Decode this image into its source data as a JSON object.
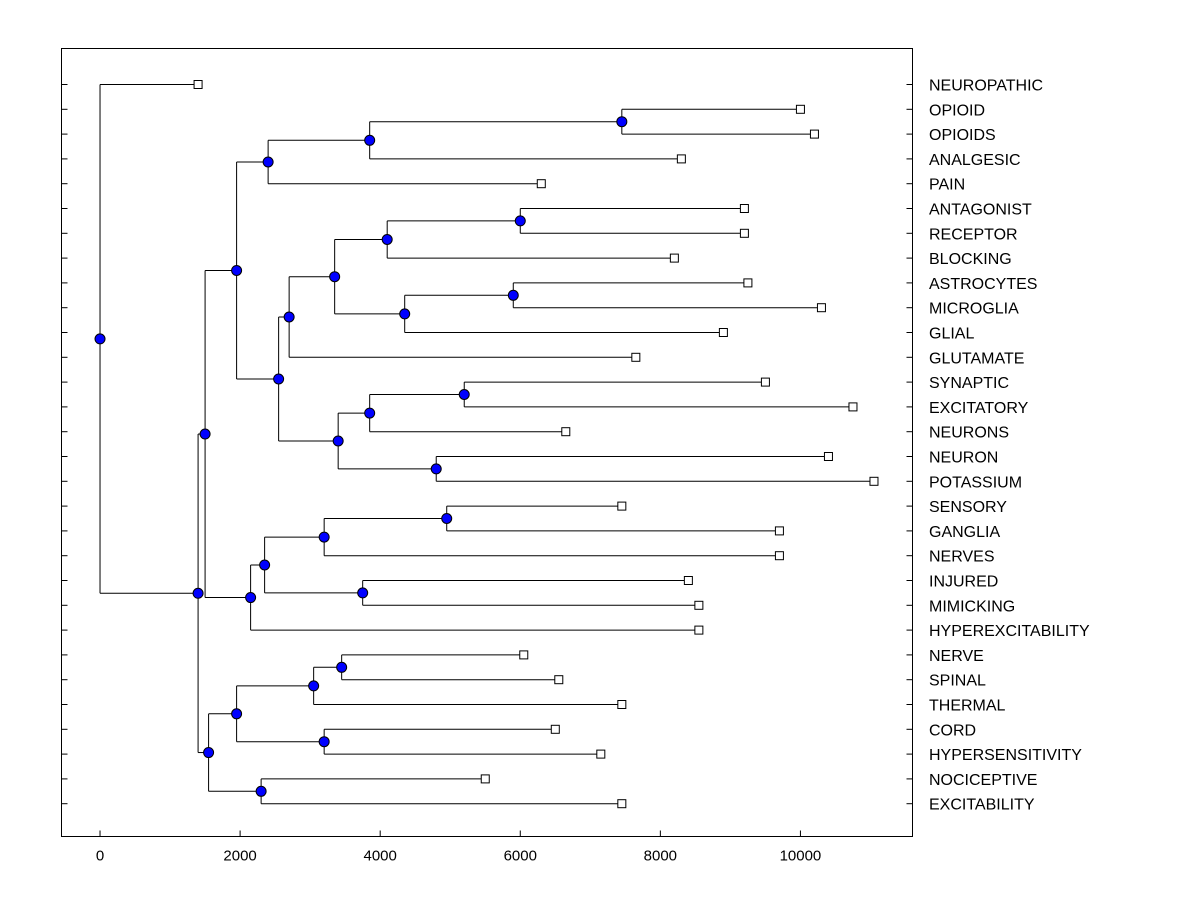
{
  "chart_data": {
    "type": "dendrogram",
    "title": "",
    "xlabel": "",
    "ylabel": "",
    "xlim": [
      -550,
      11600
    ],
    "xticks": [
      0,
      2000,
      4000,
      6000,
      8000,
      10000
    ],
    "xtick_labels": [
      "0",
      "2000",
      "4000",
      "6000",
      "8000",
      "10000"
    ],
    "colors": {
      "node": "#0000ff",
      "line": "#000000",
      "leaf_fill": "#ffffff"
    },
    "leaves": [
      {
        "id": "L0",
        "label": "NEUROPATHIC",
        "x": 1400
      },
      {
        "id": "L1",
        "label": "OPIOID",
        "x": 10000
      },
      {
        "id": "L2",
        "label": "OPIOIDS",
        "x": 10200
      },
      {
        "id": "L3",
        "label": "ANALGESIC",
        "x": 8300
      },
      {
        "id": "L4",
        "label": "PAIN",
        "x": 6300
      },
      {
        "id": "L5",
        "label": "ANTAGONIST",
        "x": 9200
      },
      {
        "id": "L6",
        "label": "RECEPTOR",
        "x": 9200
      },
      {
        "id": "L7",
        "label": "BLOCKING",
        "x": 8200
      },
      {
        "id": "L8",
        "label": "ASTROCYTES",
        "x": 9250
      },
      {
        "id": "L9",
        "label": "MICROGLIA",
        "x": 10300
      },
      {
        "id": "L10",
        "label": "GLIAL",
        "x": 8900
      },
      {
        "id": "L11",
        "label": "GLUTAMATE",
        "x": 7650
      },
      {
        "id": "L12",
        "label": "SYNAPTIC",
        "x": 9500
      },
      {
        "id": "L13",
        "label": "EXCITATORY",
        "x": 10750
      },
      {
        "id": "L14",
        "label": "NEURONS",
        "x": 6650
      },
      {
        "id": "L15",
        "label": "NEURON",
        "x": 10400
      },
      {
        "id": "L16",
        "label": "POTASSIUM",
        "x": 11050
      },
      {
        "id": "L17",
        "label": "SENSORY",
        "x": 7450
      },
      {
        "id": "L18",
        "label": "GANGLIA",
        "x": 9700
      },
      {
        "id": "L19",
        "label": "NERVES",
        "x": 9700
      },
      {
        "id": "L20",
        "label": "INJURED",
        "x": 8400
      },
      {
        "id": "L21",
        "label": "MIMICKING",
        "x": 8550
      },
      {
        "id": "L22",
        "label": "HYPEREXCITABILITY",
        "x": 8550
      },
      {
        "id": "L23",
        "label": "NERVE",
        "x": 6050
      },
      {
        "id": "L24",
        "label": "SPINAL",
        "x": 6550
      },
      {
        "id": "L25",
        "label": "THERMAL",
        "x": 7450
      },
      {
        "id": "L26",
        "label": "CORD",
        "x": 6500
      },
      {
        "id": "L27",
        "label": "HYPERSENSITIVITY",
        "x": 7150
      },
      {
        "id": "L28",
        "label": "NOCICEPTIVE",
        "x": 5500
      },
      {
        "id": "L29",
        "label": "EXCITABILITY",
        "x": 7450
      }
    ],
    "nodes": [
      {
        "id": "N1",
        "x": 7450,
        "children": [
          "L1",
          "L2"
        ]
      },
      {
        "id": "N2",
        "x": 3850,
        "children": [
          "N1",
          "L3"
        ]
      },
      {
        "id": "N3",
        "x": 2400,
        "children": [
          "N2",
          "L4"
        ]
      },
      {
        "id": "N4",
        "x": 6000,
        "children": [
          "L5",
          "L6"
        ]
      },
      {
        "id": "N5",
        "x": 4100,
        "children": [
          "N4",
          "L7"
        ]
      },
      {
        "id": "N6",
        "x": 5900,
        "children": [
          "L8",
          "L9"
        ]
      },
      {
        "id": "N7",
        "x": 4350,
        "children": [
          "N6",
          "L10"
        ]
      },
      {
        "id": "N8",
        "x": 3350,
        "children": [
          "N5",
          "N7"
        ]
      },
      {
        "id": "N9",
        "x": 2700,
        "children": [
          "N8",
          "L11"
        ]
      },
      {
        "id": "N10",
        "x": 5200,
        "children": [
          "L12",
          "L13"
        ]
      },
      {
        "id": "N11",
        "x": 3850,
        "children": [
          "N10",
          "L14"
        ]
      },
      {
        "id": "N12",
        "x": 4800,
        "children": [
          "L15",
          "L16"
        ]
      },
      {
        "id": "N13",
        "x": 3400,
        "children": [
          "N11",
          "N12"
        ]
      },
      {
        "id": "N14",
        "x": 2550,
        "children": [
          "N9",
          "N13"
        ]
      },
      {
        "id": "N15",
        "x": 1950,
        "children": [
          "N3",
          "N14"
        ]
      },
      {
        "id": "N16",
        "x": 4950,
        "children": [
          "L17",
          "L18"
        ]
      },
      {
        "id": "N17",
        "x": 3200,
        "children": [
          "N16",
          "L19"
        ]
      },
      {
        "id": "N18",
        "x": 3750,
        "children": [
          "L20",
          "L21"
        ]
      },
      {
        "id": "N19",
        "x": 2350,
        "children": [
          "N17",
          "N18"
        ]
      },
      {
        "id": "N20",
        "x": 2150,
        "children": [
          "N19",
          "L22"
        ]
      },
      {
        "id": "N21",
        "x": 1500,
        "children": [
          "N15",
          "N20"
        ]
      },
      {
        "id": "N22",
        "x": 3450,
        "children": [
          "L23",
          "L24"
        ]
      },
      {
        "id": "N23",
        "x": 3050,
        "children": [
          "N22",
          "L25"
        ]
      },
      {
        "id": "N24",
        "x": 3200,
        "children": [
          "L26",
          "L27"
        ]
      },
      {
        "id": "N25",
        "x": 1950,
        "children": [
          "N23",
          "N24"
        ]
      },
      {
        "id": "N26",
        "x": 2300,
        "children": [
          "L28",
          "L29"
        ]
      },
      {
        "id": "N27",
        "x": 1550,
        "children": [
          "N25",
          "N26"
        ]
      },
      {
        "id": "N28",
        "x": 1400,
        "children": [
          "N21",
          "N27"
        ]
      },
      {
        "id": "N29",
        "x": 0,
        "children": [
          "L0",
          "N28"
        ]
      }
    ]
  }
}
